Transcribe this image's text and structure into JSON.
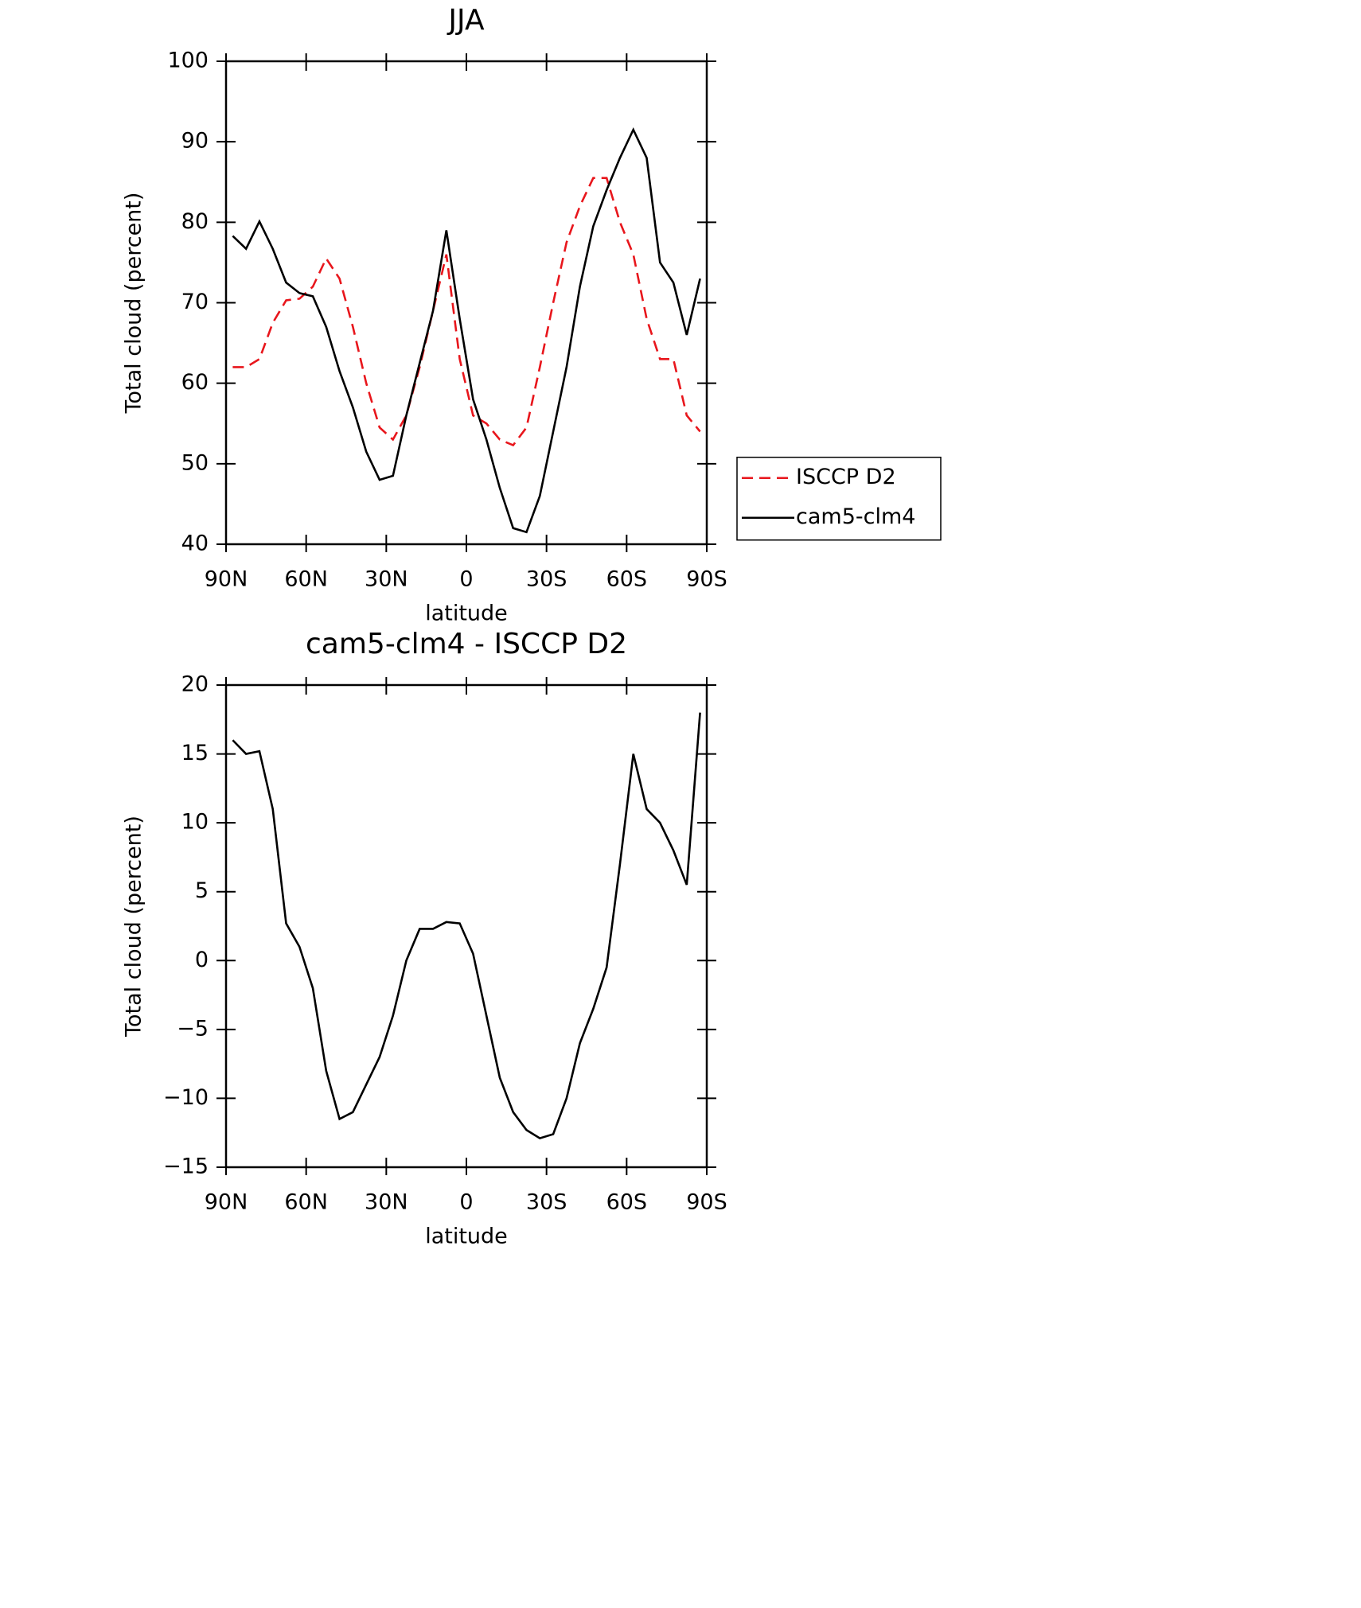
{
  "chart_data": [
    {
      "type": "line",
      "title": "JJA",
      "xlabel": "latitude",
      "ylabel": "Total cloud (percent)",
      "x": [
        87.5,
        82.5,
        77.5,
        72.5,
        67.5,
        62.5,
        57.5,
        52.5,
        47.5,
        42.5,
        37.5,
        32.5,
        27.5,
        22.5,
        17.5,
        12.5,
        7.5,
        2.5,
        -2.5,
        -7.5,
        -12.5,
        -17.5,
        -22.5,
        -27.5,
        -32.5,
        -37.5,
        -42.5,
        -47.5,
        -52.5,
        -57.5,
        -62.5,
        -67.5,
        -72.5,
        -77.5,
        -82.5,
        -87.5
      ],
      "series": [
        {
          "name": "ISCCP D2",
          "color": "#e8161c",
          "line_style": "dashed",
          "values": [
            62,
            62,
            63,
            67.5,
            70.3,
            70.5,
            72,
            75.5,
            73,
            67,
            60,
            54.5,
            53,
            56,
            62,
            69,
            76,
            63,
            56,
            55,
            53,
            52.3,
            54.5,
            62,
            70,
            77.5,
            82,
            85.5,
            85.5,
            80,
            76,
            68,
            63,
            63,
            56,
            54
          ]
        },
        {
          "name": "cam5-clm4",
          "color": "#000000",
          "line_style": "solid",
          "values": [
            78.3,
            76.7,
            80.1,
            76.7,
            72.5,
            71.2,
            70.8,
            67,
            61.5,
            57,
            51.5,
            48,
            48.5,
            56,
            62.5,
            69,
            79,
            68,
            58,
            53,
            47,
            42,
            41.5,
            46,
            54,
            62,
            72,
            79.5,
            84,
            88,
            91.5,
            88,
            75,
            72.5,
            66,
            73
          ]
        }
      ],
      "xlim": [
        90,
        -90
      ],
      "xticks": [
        {
          "value": 90,
          "label": "90N"
        },
        {
          "value": 60,
          "label": "60N"
        },
        {
          "value": 30,
          "label": "30N"
        },
        0,
        {
          "value": -30,
          "label": "30S"
        },
        {
          "value": -60,
          "label": "60S"
        },
        {
          "value": -90,
          "label": "90S"
        }
      ],
      "ylim": [
        40,
        100
      ],
      "yticks": [
        40,
        50,
        60,
        70,
        80,
        90,
        100
      ],
      "legend": "right"
    },
    {
      "type": "line",
      "title": "cam5-clm4 - ISCCP D2",
      "xlabel": "latitude",
      "ylabel": "Total cloud (percent)",
      "x": [
        87.5,
        82.5,
        77.5,
        72.5,
        67.5,
        62.5,
        57.5,
        52.5,
        47.5,
        42.5,
        37.5,
        32.5,
        27.5,
        22.5,
        17.5,
        12.5,
        7.5,
        2.5,
        -2.5,
        -7.5,
        -12.5,
        -17.5,
        -22.5,
        -27.5,
        -32.5,
        -37.5,
        -42.5,
        -47.5,
        -52.5,
        -57.5,
        -62.5,
        -67.5,
        -72.5,
        -77.5,
        -82.5,
        -87.5
      ],
      "series": [
        {
          "color": "#000000",
          "line_style": "solid",
          "values": [
            16,
            15,
            15.2,
            11,
            2.7,
            1,
            -2,
            -8,
            -11.5,
            -11,
            -9,
            -7,
            -4,
            0,
            2.3,
            2.3,
            2.8,
            2.7,
            0.5,
            -4,
            -8.5,
            -11,
            -12.3,
            -12.9,
            -12.6,
            -10,
            -6,
            -3.5,
            -0.5,
            7,
            15,
            11,
            10,
            8,
            5.5,
            18
          ]
        }
      ],
      "xlim": [
        90,
        -90
      ],
      "xticks": [
        {
          "value": 90,
          "label": "90N"
        },
        {
          "value": 60,
          "label": "60N"
        },
        {
          "value": 30,
          "label": "30N"
        },
        0,
        {
          "value": -30,
          "label": "30S"
        },
        {
          "value": -60,
          "label": "60S"
        },
        {
          "value": -90,
          "label": "90S"
        }
      ],
      "ylim": [
        -15,
        20
      ],
      "yticks": [
        {
          "value": -15,
          "label": "−15"
        },
        {
          "value": -10,
          "label": "−10"
        },
        {
          "value": -5,
          "label": "−5"
        },
        0,
        5,
        10,
        15,
        20
      ]
    }
  ]
}
